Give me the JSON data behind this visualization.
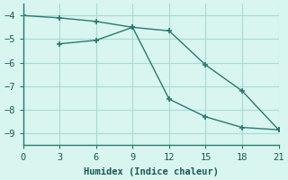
{
  "line1_x": [
    0,
    3,
    6,
    9,
    12,
    15,
    18,
    21
  ],
  "line1_y": [
    -4.0,
    -4.1,
    -4.25,
    -4.5,
    -4.65,
    -6.1,
    -7.2,
    -8.85
  ],
  "line2_x": [
    3,
    6,
    9,
    12,
    15,
    18,
    21
  ],
  "line2_y": [
    -5.2,
    -5.05,
    -4.5,
    -7.55,
    -8.3,
    -8.75,
    -8.85
  ],
  "color": "#2a7a6e",
  "bg_color": "#d8f5f0",
  "grid_color": "#aad9d4",
  "xlabel": "Humidex (Indice chaleur)",
  "xlim": [
    0,
    21
  ],
  "ylim": [
    -9.5,
    -3.5
  ],
  "xticks": [
    0,
    3,
    6,
    9,
    12,
    15,
    18,
    21
  ],
  "yticks": [
    -9,
    -8,
    -7,
    -6,
    -5,
    -4
  ],
  "marker": "+"
}
